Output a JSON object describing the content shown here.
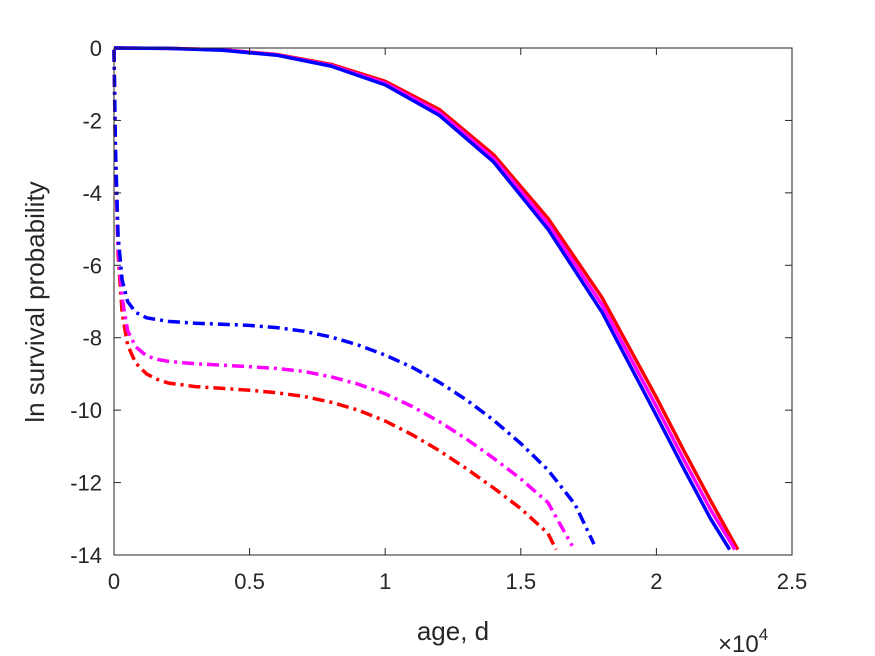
{
  "chart_data": {
    "type": "line",
    "xlabel": "age, d",
    "ylabel": "ln survival probability",
    "x_exponent_label": {
      "base": "×10",
      "power": "4"
    },
    "xlim": [
      0,
      25000
    ],
    "ylim": [
      -14,
      0
    ],
    "xticks": [
      0,
      5000,
      10000,
      15000,
      20000,
      25000
    ],
    "xtick_labels": [
      "0",
      "0.5",
      "1",
      "1.5",
      "2",
      "2.5"
    ],
    "yticks": [
      0,
      -2,
      -4,
      -6,
      -8,
      -10,
      -12,
      -14
    ],
    "ytick_labels": [
      "0",
      "-2",
      "-4",
      "-6",
      "-8",
      "-10",
      "-12",
      "-14"
    ],
    "grid": false,
    "box": true,
    "series": [
      {
        "color": "#ff0000",
        "style": "solid",
        "x": [
          0,
          2000,
          4000,
          6000,
          8000,
          10000,
          12000,
          14000,
          16000,
          18000,
          20000,
          21000,
          22000,
          23000
        ],
        "y": [
          0,
          -0.01,
          -0.05,
          -0.18,
          -0.45,
          -0.92,
          -1.7,
          -2.95,
          -4.7,
          -6.9,
          -9.65,
          -11.1,
          -12.5,
          -13.85
        ]
      },
      {
        "color": "#ff00ff",
        "style": "solid",
        "x": [
          0,
          2000,
          4000,
          6000,
          8000,
          10000,
          12000,
          14000,
          16000,
          18000,
          20000,
          21000,
          22000,
          22900
        ],
        "y": [
          0,
          -0.01,
          -0.05,
          -0.19,
          -0.48,
          -0.97,
          -1.78,
          -3.05,
          -4.85,
          -7.1,
          -9.9,
          -11.35,
          -12.75,
          -13.85
        ]
      },
      {
        "color": "#0000ff",
        "style": "solid",
        "x": [
          0,
          2000,
          4000,
          6000,
          8000,
          10000,
          12000,
          14000,
          16000,
          18000,
          20000,
          21000,
          22000,
          22700
        ],
        "y": [
          0,
          -0.01,
          -0.06,
          -0.2,
          -0.5,
          -1.02,
          -1.86,
          -3.15,
          -5.0,
          -7.3,
          -10.15,
          -11.6,
          -13.0,
          -13.85
        ]
      },
      {
        "color": "#ff0000",
        "style": "dashdot",
        "x": [
          0,
          50,
          150,
          300,
          500,
          800,
          1200,
          1600,
          2000,
          3000,
          4000,
          5000,
          6000,
          7000,
          8000,
          9000,
          10000,
          11000,
          12000,
          13000,
          14000,
          15000,
          16000,
          16300
        ],
        "y": [
          -0.05,
          -3.0,
          -5.7,
          -7.3,
          -8.2,
          -8.7,
          -9.0,
          -9.15,
          -9.25,
          -9.35,
          -9.4,
          -9.45,
          -9.52,
          -9.62,
          -9.78,
          -10.0,
          -10.3,
          -10.68,
          -11.12,
          -11.62,
          -12.15,
          -12.72,
          -13.4,
          -13.85
        ]
      },
      {
        "color": "#ff00ff",
        "style": "dashdot",
        "x": [
          0,
          50,
          150,
          300,
          500,
          800,
          1200,
          1600,
          2000,
          3000,
          4000,
          5000,
          6000,
          7000,
          8000,
          9000,
          10000,
          11000,
          12000,
          13000,
          14000,
          15000,
          16000,
          16900
        ],
        "y": [
          -0.05,
          -2.9,
          -5.5,
          -6.9,
          -7.8,
          -8.25,
          -8.5,
          -8.6,
          -8.65,
          -8.72,
          -8.76,
          -8.8,
          -8.85,
          -8.93,
          -9.08,
          -9.28,
          -9.55,
          -9.9,
          -10.32,
          -10.8,
          -11.33,
          -11.9,
          -12.55,
          -13.75
        ]
      },
      {
        "color": "#0000ff",
        "style": "dashdot",
        "x": [
          0,
          50,
          150,
          300,
          500,
          800,
          1200,
          1600,
          2000,
          3000,
          4000,
          5000,
          6000,
          7000,
          8000,
          9000,
          10000,
          11000,
          12000,
          13000,
          14000,
          15000,
          16000,
          17000,
          17700
        ],
        "y": [
          -0.05,
          -2.7,
          -5.2,
          -6.4,
          -7.0,
          -7.3,
          -7.45,
          -7.5,
          -7.55,
          -7.6,
          -7.63,
          -7.66,
          -7.72,
          -7.82,
          -7.98,
          -8.2,
          -8.48,
          -8.82,
          -9.23,
          -9.72,
          -10.28,
          -10.92,
          -11.65,
          -12.6,
          -13.7
        ]
      }
    ]
  }
}
